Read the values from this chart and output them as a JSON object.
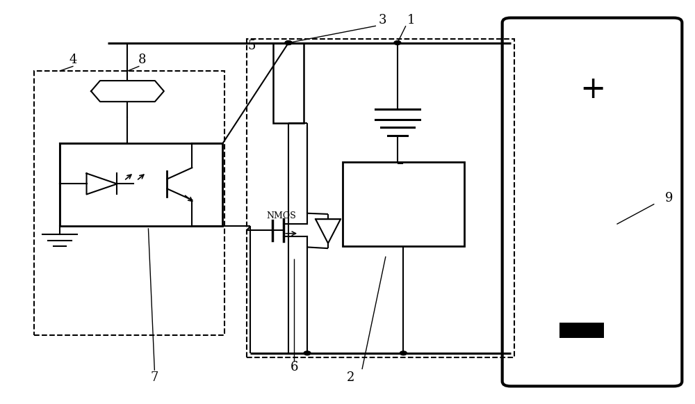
{
  "bg_color": "#ffffff",
  "line_color": "#000000",
  "fig_width": 10.0,
  "fig_height": 5.81
}
